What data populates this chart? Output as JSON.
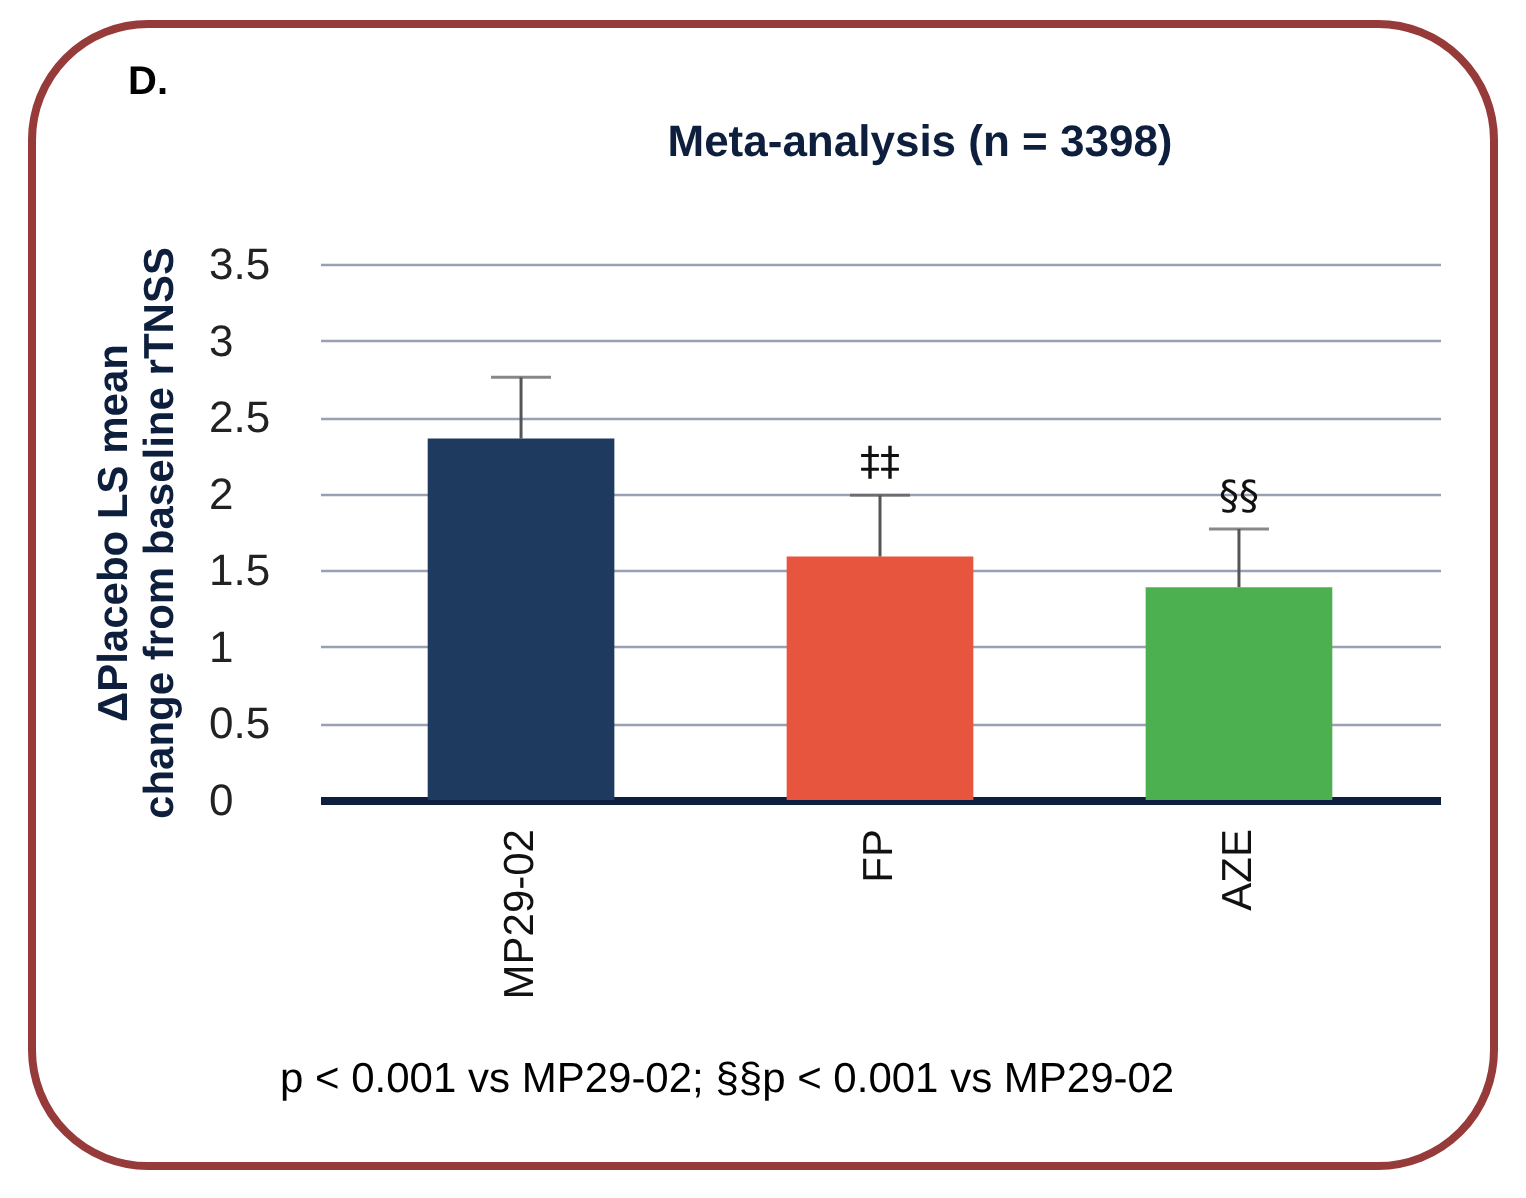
{
  "chart_data": {
    "type": "bar",
    "title": "Meta-analysis (n = 3398)",
    "ylabel": "ΔPlacebo LS mean change from baseline rTNSS",
    "categories": [
      "MP29-02",
      "FP",
      "AZE"
    ],
    "values": [
      2.36,
      1.59,
      1.39
    ],
    "errors": [
      0.4,
      0.4,
      0.38
    ],
    "colors": [
      "#1f3a5f",
      "#e8553f",
      "#4caf50"
    ],
    "ylim": [
      0,
      3.5
    ],
    "yticks": [
      0,
      0.5,
      1,
      1.5,
      2,
      2.5,
      3,
      3.5
    ],
    "grid": "y",
    "annotations": [
      "D.",
      {
        "text": "‡‡",
        "x": "FP",
        "y": 1.99
      },
      {
        "text": "§§",
        "x": "AZE",
        "y": 1.77
      },
      "p < 0.001 vs MP29-02; §§p < 0.001 vs MP29-02"
    ]
  }
}
